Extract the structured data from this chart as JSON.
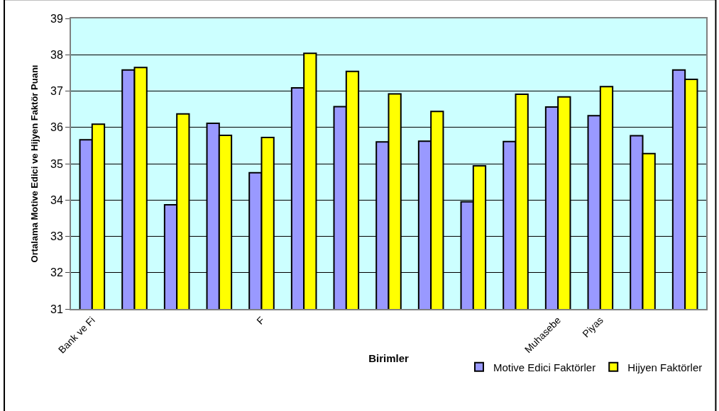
{
  "chart_data": {
    "type": "bar",
    "xlabel": "Birimler",
    "ylabel": "Ortalama Motive Edici ve Hijyen Faktör Puanı",
    "categories": [
      "Bank ve Fi",
      null,
      null,
      null,
      "F",
      null,
      null,
      null,
      null,
      null,
      null,
      "Muhasebe",
      "Piyas",
      null,
      null
    ],
    "series": [
      {
        "name": "Motive Edici Faktörler",
        "color": "#9999ff",
        "values": [
          35.66,
          37.58,
          33.87,
          36.11,
          34.75,
          37.09,
          36.57,
          35.6,
          35.62,
          33.95,
          35.61,
          36.56,
          36.32,
          35.77,
          37.58
        ]
      },
      {
        "name": "Hijyen Faktörler",
        "color": "#ffff00",
        "values": [
          36.09,
          37.65,
          36.37,
          35.78,
          35.72,
          38.04,
          37.54,
          36.92,
          36.44,
          34.94,
          36.91,
          36.84,
          37.12,
          35.28,
          37.32
        ]
      }
    ],
    "ylim": [
      31,
      39
    ],
    "yticks": [
      31,
      32,
      33,
      34,
      35,
      36,
      37,
      38,
      39
    ],
    "grid": "y",
    "legend": "bottom right"
  }
}
